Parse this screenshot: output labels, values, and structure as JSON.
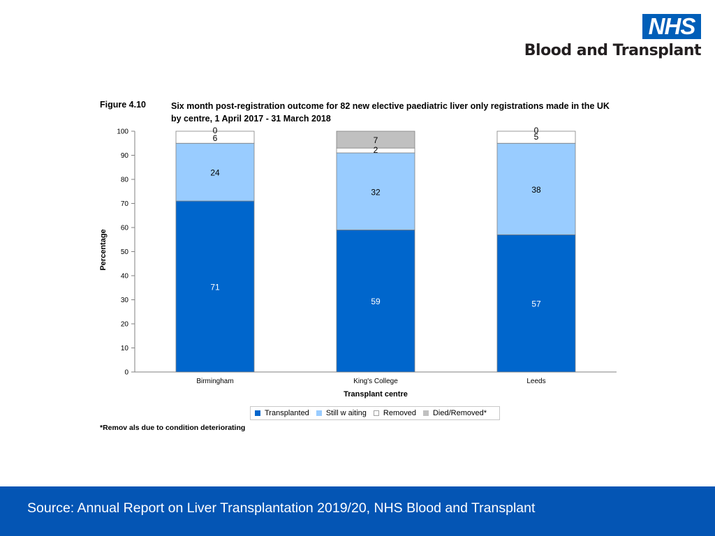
{
  "logo": {
    "nhs": "NHS",
    "subtitle": "Blood and Transplant",
    "brand_color": "#005EB8"
  },
  "figure": {
    "label": "Figure 4.10",
    "title": "Six month post-registration outcome for 82 new elective paediatric liver only registrations made in the UK by centre, 1 April 2017 - 31 March 2018"
  },
  "chart_data": {
    "type": "bar",
    "stacked": true,
    "categories": [
      "Birmingham",
      "King's College",
      "Leeds"
    ],
    "series": [
      {
        "name": "Transplanted",
        "color": "#0066cc",
        "values": [
          71,
          59,
          57
        ]
      },
      {
        "name": "Still w aiting",
        "color": "#99ccff",
        "values": [
          24,
          32,
          38
        ]
      },
      {
        "name": "Removed",
        "color": "#ffffff",
        "values": [
          6,
          2,
          5
        ]
      },
      {
        "name": "Died/Removed*",
        "color": "#c0c0c0",
        "values": [
          0,
          7,
          0
        ]
      }
    ],
    "displayed_values": [
      [
        "71",
        "24",
        "6",
        "0"
      ],
      [
        "59",
        "32",
        "2",
        "7"
      ],
      [
        "57",
        "38",
        "5",
        "0"
      ]
    ],
    "ylabel": "Percentage",
    "xlabel": "Transplant centre",
    "ylim": [
      0,
      100
    ],
    "yticks": [
      0,
      10,
      20,
      30,
      40,
      50,
      60,
      70,
      80,
      90,
      100
    ],
    "legend_position": "bottom"
  },
  "footnote": "*Remov als due to condition deteriorating",
  "footer": {
    "source": "Source: Annual Report on Liver Transplantation 2019/20, NHS Blood and Transplant",
    "color": "#0455b4"
  }
}
